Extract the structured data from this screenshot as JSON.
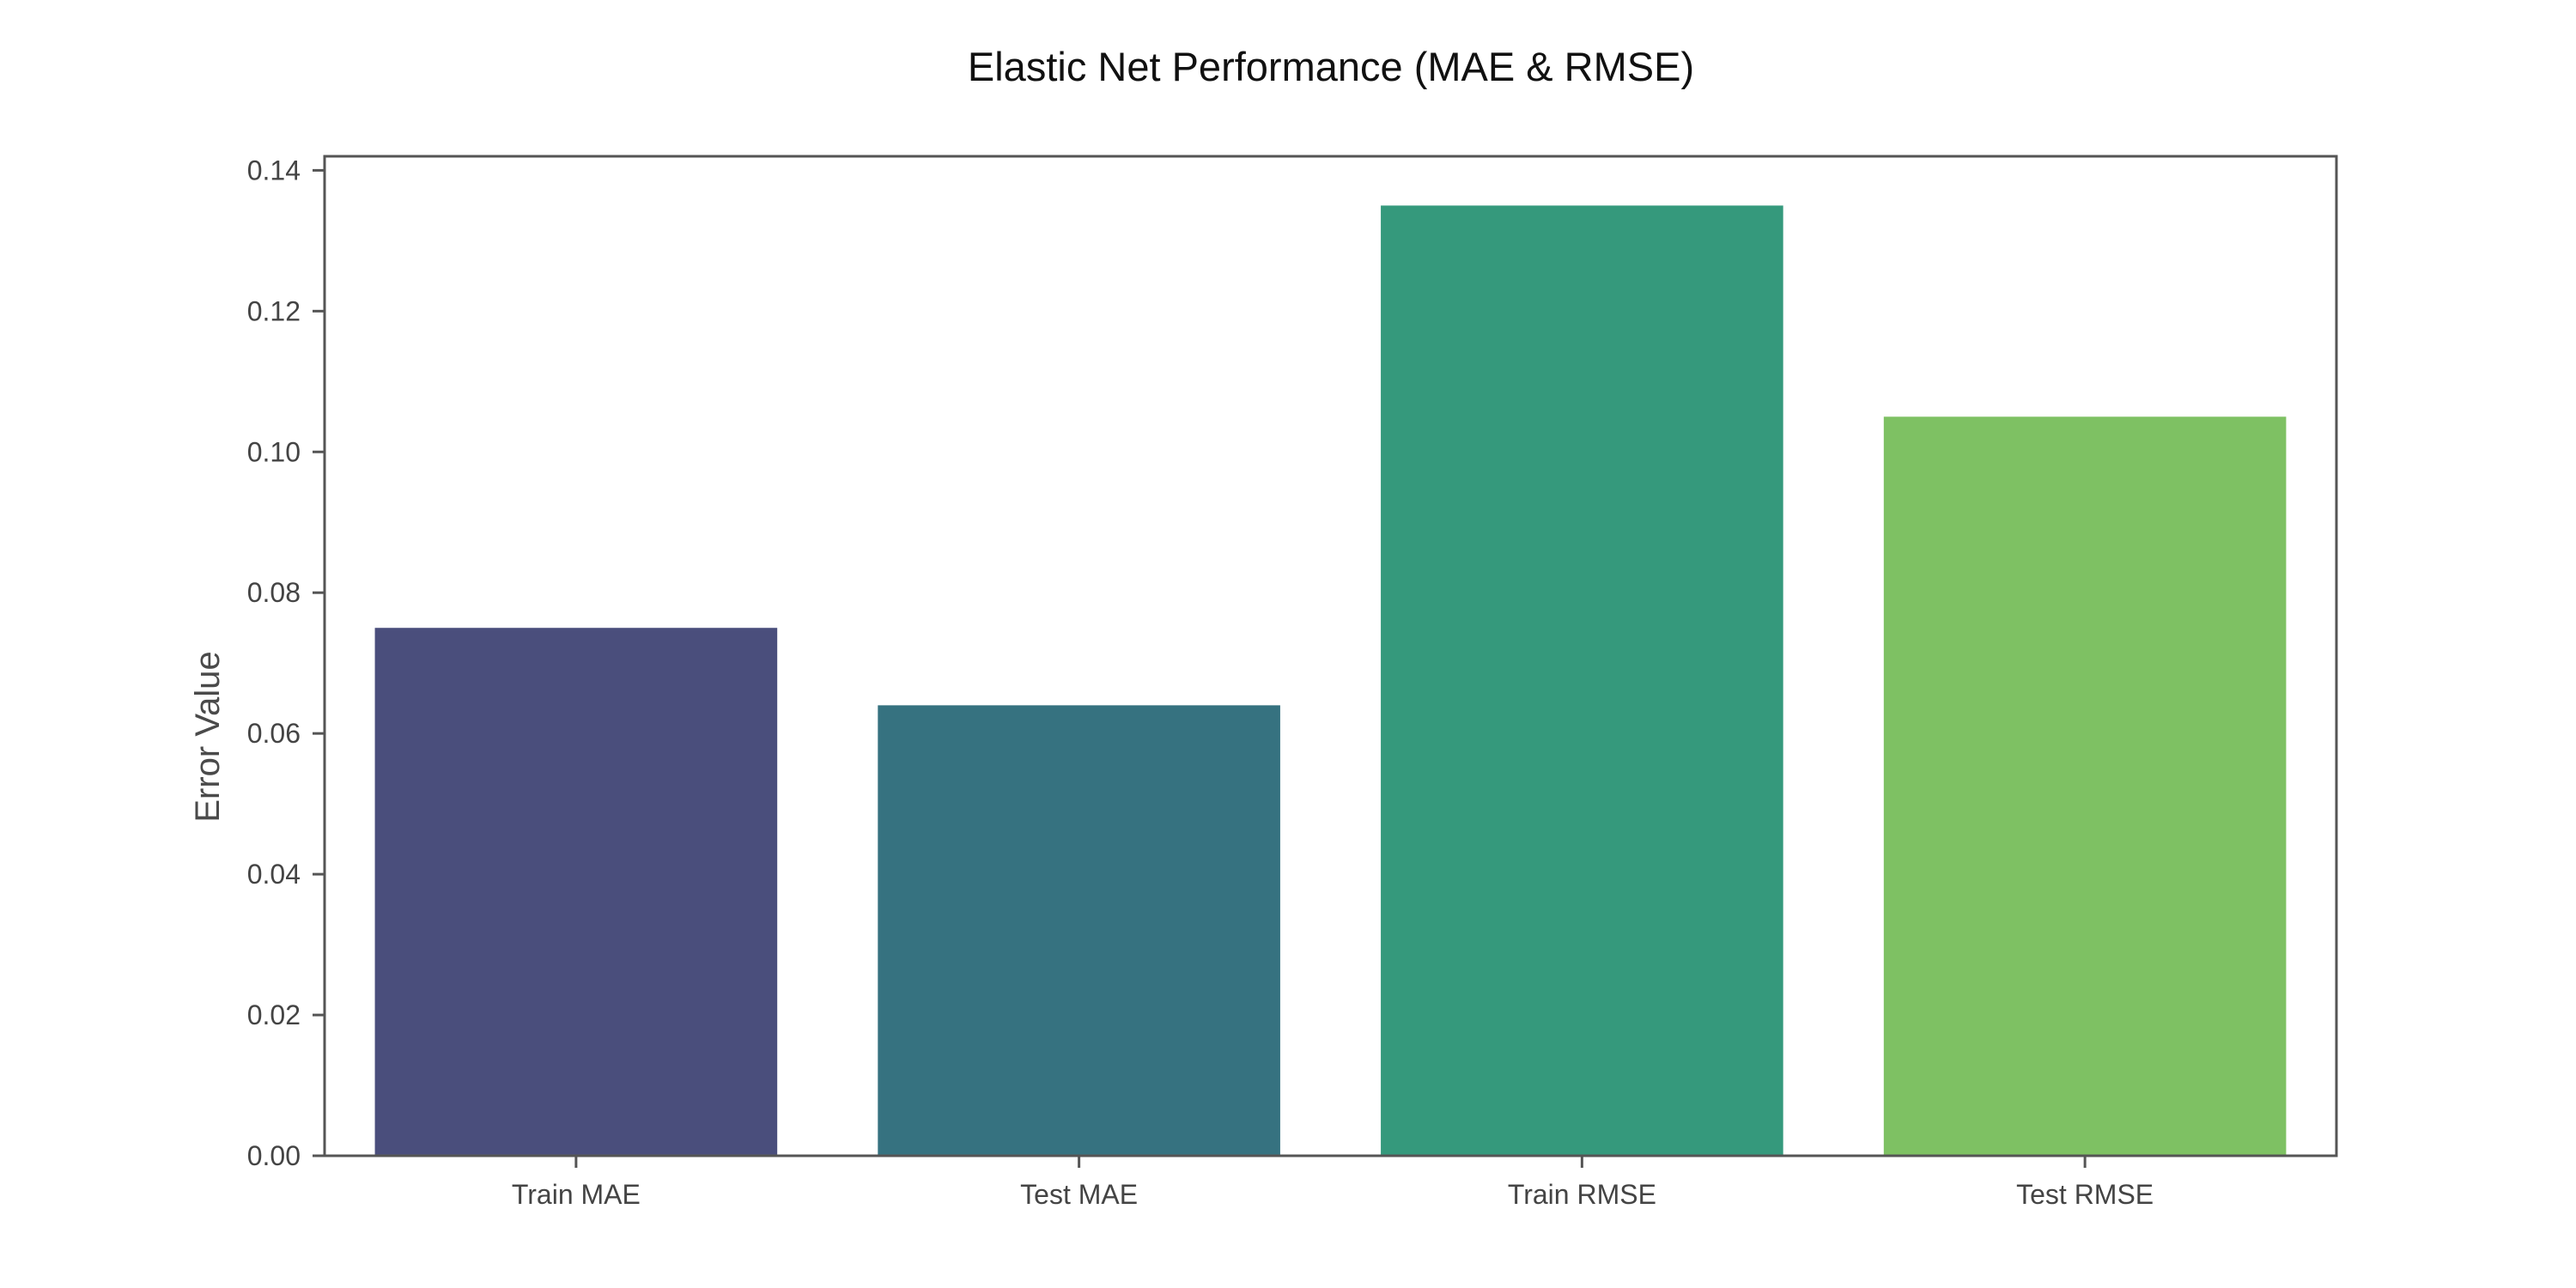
{
  "chart_data": {
    "type": "bar",
    "title": "Elastic Net Performance (MAE & RMSE)",
    "xlabel": "",
    "ylabel": "Error Value",
    "categories": [
      "Train MAE",
      "Test MAE",
      "Train RMSE",
      "Test RMSE"
    ],
    "values": [
      0.075,
      0.064,
      0.135,
      0.105
    ],
    "colors": [
      "#4a4e7c",
      "#367280",
      "#35997c",
      "#7ec163"
    ],
    "ylim": [
      0,
      0.142
    ],
    "yticks": [
      0,
      0.02,
      0.04,
      0.06,
      0.08,
      0.1,
      0.12,
      0.14
    ],
    "ytick_labels": [
      "0.00",
      "0.02",
      "0.04",
      "0.06",
      "0.08",
      "0.10",
      "0.12",
      "0.14"
    ],
    "grid": false,
    "legend": "none"
  }
}
